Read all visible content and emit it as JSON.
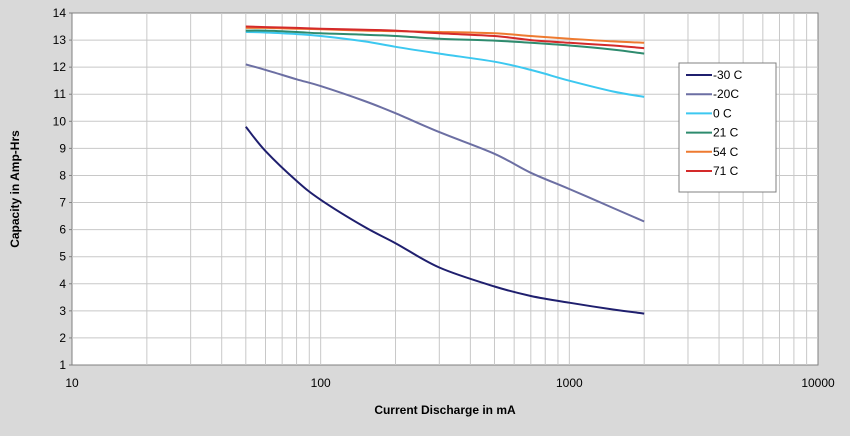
{
  "chart_data": {
    "type": "line",
    "title": "",
    "xlabel": "Current Discharge in mA",
    "ylabel": "Capacity in Amp-Hrs",
    "xscale": "log",
    "xlim": [
      10,
      10000
    ],
    "ylim": [
      1,
      14
    ],
    "grid": true,
    "legend_position": "right",
    "x_ticks": [
      "10",
      "100",
      "1000",
      "10000"
    ],
    "y_ticks": [
      "1",
      "2",
      "3",
      "4",
      "5",
      "6",
      "7",
      "8",
      "9",
      "10",
      "11",
      "12",
      "13",
      "14"
    ],
    "x": [
      50,
      60,
      80,
      100,
      150,
      200,
      300,
      500,
      700,
      1000,
      1500,
      2000
    ],
    "series": [
      {
        "name": "-30 C",
        "color": "#1f1f6e",
        "values": [
          9.8,
          8.9,
          7.8,
          7.1,
          6.1,
          5.5,
          4.6,
          3.9,
          3.55,
          3.3,
          3.05,
          2.9
        ]
      },
      {
        "name": "-20C",
        "color": "#6c6fa3",
        "values": [
          12.1,
          11.9,
          11.55,
          11.3,
          10.75,
          10.3,
          9.6,
          8.8,
          8.1,
          7.5,
          6.8,
          6.3
        ]
      },
      {
        "name": "0 C",
        "color": "#3cc8f0",
        "values": [
          13.3,
          13.28,
          13.22,
          13.15,
          12.95,
          12.75,
          12.5,
          12.2,
          11.9,
          11.5,
          11.1,
          10.9
        ]
      },
      {
        "name": "21 C",
        "color": "#2e8b6e",
        "values": [
          13.35,
          13.35,
          13.3,
          13.25,
          13.2,
          13.15,
          13.05,
          12.98,
          12.9,
          12.8,
          12.65,
          12.5
        ]
      },
      {
        "name": "54 C",
        "color": "#ee7a30",
        "values": [
          13.45,
          13.45,
          13.42,
          13.4,
          13.35,
          13.33,
          13.3,
          13.25,
          13.15,
          13.05,
          12.95,
          12.9
        ]
      },
      {
        "name": "71 C",
        "color": "#d42a2a",
        "values": [
          13.5,
          13.48,
          13.45,
          13.42,
          13.38,
          13.35,
          13.25,
          13.15,
          13.0,
          12.9,
          12.8,
          12.7
        ]
      }
    ]
  }
}
